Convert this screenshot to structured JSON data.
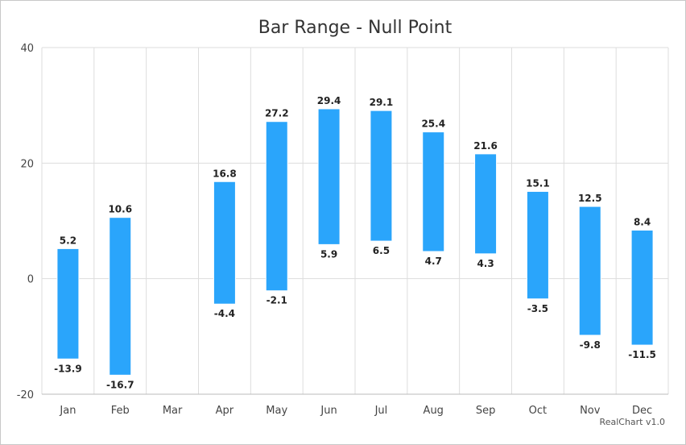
{
  "chart_data": {
    "type": "bar",
    "subtype": "range",
    "title": "Bar Range - Null Point",
    "categories": [
      "Jan",
      "Feb",
      "Mar",
      "Apr",
      "May",
      "Jun",
      "Jul",
      "Aug",
      "Sep",
      "Oct",
      "Nov",
      "Dec"
    ],
    "series": [
      {
        "low": [
          -13.9,
          -16.7,
          null,
          -4.4,
          -2.1,
          5.9,
          6.5,
          4.7,
          4.3,
          -3.5,
          -9.8,
          -11.5
        ],
        "high": [
          5.2,
          10.6,
          null,
          16.8,
          27.2,
          29.4,
          29.1,
          25.4,
          21.6,
          15.1,
          12.5,
          8.4
        ]
      }
    ],
    "ylim": [
      -20,
      40
    ],
    "yticks": [
      -20,
      0,
      20,
      40
    ],
    "grid": true,
    "legend": "none",
    "bar_color": "#2aa5fb"
  },
  "credit": "RealChart v1.0"
}
